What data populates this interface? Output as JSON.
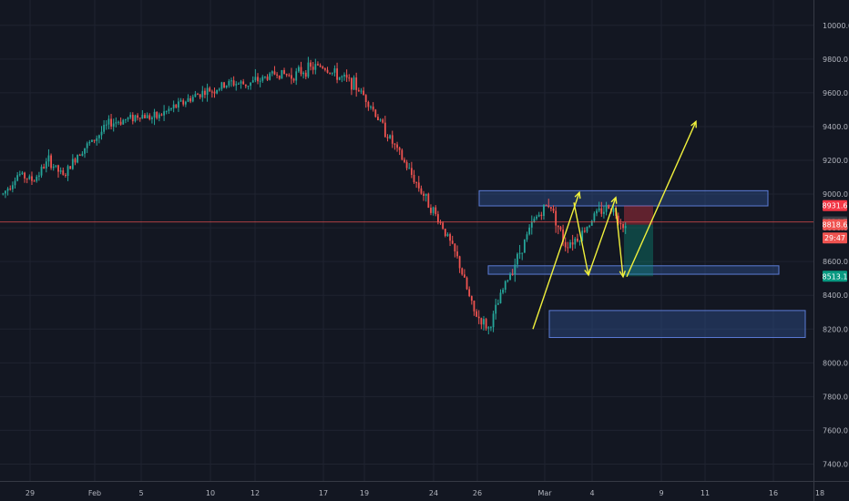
{
  "chart_data": {
    "type": "candlestick",
    "title": "",
    "y_axis": {
      "ticks": [
        10000.0,
        9800.0,
        9600.0,
        9400.0,
        9200.0,
        9000.0,
        8800.0,
        8600.0,
        8400.0,
        8200.0,
        8000.0,
        7800.0,
        7600.0,
        7400.0
      ],
      "labels": [
        "10000.0",
        "9800.0",
        "9600.0",
        "9400.0",
        "9200.0",
        "9000.0",
        "8800.0",
        "8600.0",
        "8400.0",
        "8200.0",
        "8000.0",
        "7800.0",
        "7600.0",
        "7400.0"
      ],
      "range": [
        7300,
        10150
      ]
    },
    "x_axis": {
      "labels": [
        "29",
        "Feb",
        "5",
        "10",
        "12",
        "17",
        "19",
        "24",
        "26",
        "Mar",
        "4",
        "9",
        "11",
        "16",
        "18"
      ]
    },
    "price_tags": [
      {
        "label": "8931.6",
        "value": 8931.6,
        "color": "#f23645"
      },
      {
        "label": "8834.7",
        "value": 8834.7,
        "color": "#3c3f48"
      },
      {
        "label": "8818.6",
        "value": 8818.6,
        "color": "#ef5350"
      },
      {
        "label": "29:47",
        "value": 8740,
        "color": "#ef5350"
      },
      {
        "label": "8513.1",
        "value": 8513.1,
        "color": "#089981"
      }
    ],
    "current_price": 8834.7,
    "zones": [
      {
        "from": 8930,
        "to": 9020
      },
      {
        "from": 8525,
        "to": 8575
      },
      {
        "from": 8150,
        "to": 8310
      }
    ],
    "trade_setup": {
      "entry": 8818.6,
      "stop": 8931.6,
      "target": 8513.1
    },
    "price_path_approx": [
      9000,
      9120,
      9080,
      9200,
      9100,
      9250,
      9320,
      9420,
      9440,
      9470,
      9450,
      9500,
      9550,
      9600,
      9620,
      9660,
      9650,
      9680,
      9720,
      9700,
      9740,
      9760,
      9700,
      9660,
      9560,
      9400,
      9250,
      9100,
      8950,
      8800,
      8600,
      8300,
      8200,
      8450,
      8650,
      8850,
      8950,
      8700,
      8750,
      8880,
      8930,
      8800
    ],
    "colors": {
      "up": "#26a69a",
      "down": "#ef5350",
      "annotation": "#f0f03c",
      "zone_fill": "#2f4f8f",
      "zone_stroke": "#5b7bd5"
    }
  }
}
